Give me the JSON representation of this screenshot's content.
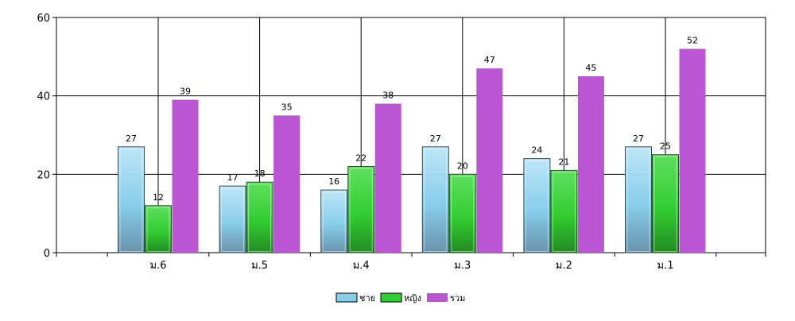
{
  "chart_data": {
    "type": "bar",
    "categories": [
      "ม.6",
      "ม.5",
      "ม.4",
      "ม.3",
      "ม.2",
      "ม.1"
    ],
    "series": [
      {
        "name": "ชาย",
        "values": [
          27,
          17,
          16,
          27,
          24,
          27
        ],
        "color": "#87CEEB"
      },
      {
        "name": "หญิง",
        "values": [
          12,
          18,
          22,
          20,
          21,
          25
        ],
        "color": "#32CD32"
      },
      {
        "name": "รวม",
        "values": [
          39,
          35,
          38,
          47,
          45,
          52
        ],
        "color": "#BA55D3"
      }
    ],
    "ylim": [
      0,
      60
    ],
    "yticks": [
      0,
      20,
      40,
      60
    ],
    "grid": true,
    "legend_position": "bottom-center",
    "data_labels": true
  }
}
